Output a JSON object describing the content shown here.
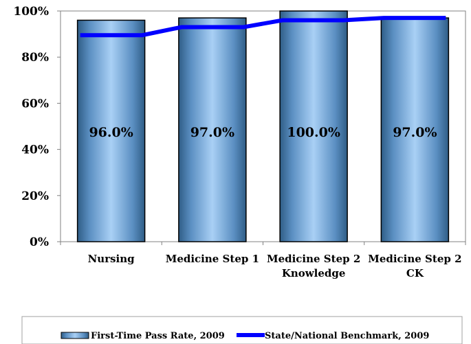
{
  "chart_data": {
    "type": "bar",
    "categories": [
      [
        "Nursing"
      ],
      [
        "Medicine Step 1"
      ],
      [
        "Medicine Step 2",
        "Knowledge"
      ],
      [
        "Medicine Step 2",
        "CK"
      ]
    ],
    "series": [
      {
        "name": "First-Time Pass Rate, 2009",
        "kind": "bar",
        "values": [
          96.0,
          97.0,
          100.0,
          97.0
        ],
        "data_labels": [
          "96.0%",
          "97.0%",
          "100.0%",
          "97.0%"
        ],
        "color": "#6fa4d6"
      },
      {
        "name": "State/National Benchmark, 2009",
        "kind": "line",
        "values": [
          89.5,
          93.0,
          96.0,
          97.0
        ],
        "color": "#0000ff"
      }
    ],
    "y_ticks": [
      "0%",
      "20%",
      "40%",
      "60%",
      "80%",
      "100%"
    ],
    "ylim": [
      0,
      100
    ],
    "title": "",
    "xlabel": "",
    "ylabel": "",
    "grid": false,
    "legend_position": "bottom"
  }
}
